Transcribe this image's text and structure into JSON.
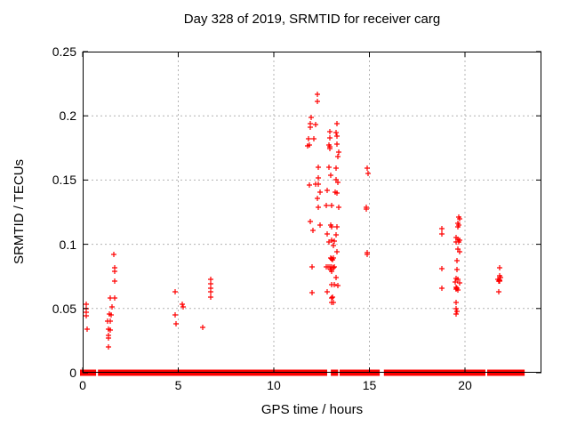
{
  "title": "Day 328 of 2019, SRMTID for receiver carg",
  "x_axis": {
    "label": "GPS time / hours",
    "tick_labels": [
      "0",
      "5",
      "10",
      "15",
      "20"
    ]
  },
  "y_axis": {
    "label": "SRMTID / TECUs",
    "tick_labels": [
      "0",
      "0.05",
      "0.1",
      "0.15",
      "0.2",
      "0.25"
    ]
  },
  "colors": {
    "marker": "#ff0000",
    "grid": "#b3b3b3",
    "border": "#000000",
    "background": "#ffffff"
  },
  "chart_data": {
    "type": "scatter",
    "title": "Day 328 of 2019, SRMTID for receiver carg",
    "xlabel": "GPS time / hours",
    "ylabel": "SRMTID / TECUs",
    "xlim": [
      0,
      24
    ],
    "ylim": [
      0,
      0.25
    ],
    "x_ticks": [
      0,
      5,
      10,
      15,
      20
    ],
    "y_ticks": [
      0,
      0.05,
      0.1,
      0.15,
      0.2,
      0.25
    ],
    "grid": true,
    "legend": "none",
    "marker": {
      "shape": "plus",
      "color": "#ff0000",
      "size": 7
    },
    "series": [
      {
        "name": "SRMTID",
        "points": [
          [
            0.2,
            0.053
          ],
          [
            0.2,
            0.05
          ],
          [
            0.2,
            0.047
          ],
          [
            0.2,
            0.044
          ],
          [
            0.25,
            0.034
          ],
          [
            1.45,
            0.058
          ],
          [
            1.55,
            0.051
          ],
          [
            1.4,
            0.046
          ],
          [
            1.5,
            0.045
          ],
          [
            1.3,
            0.04
          ],
          [
            1.42,
            0.04
          ],
          [
            1.36,
            0.034
          ],
          [
            1.42,
            0.033
          ],
          [
            1.36,
            0.029
          ],
          [
            1.36,
            0.027
          ],
          [
            1.33,
            0.02
          ],
          [
            1.63,
            0.092
          ],
          [
            1.67,
            0.082
          ],
          [
            1.67,
            0.079
          ],
          [
            1.67,
            0.071
          ],
          [
            1.67,
            0.058
          ],
          [
            4.85,
            0.063
          ],
          [
            5.21,
            0.053
          ],
          [
            5.26,
            0.051
          ],
          [
            4.82,
            0.045
          ],
          [
            4.9,
            0.038
          ],
          [
            6.26,
            0.035
          ],
          [
            6.71,
            0.073
          ],
          [
            6.71,
            0.069
          ],
          [
            6.71,
            0.066
          ],
          [
            6.71,
            0.063
          ],
          [
            6.71,
            0.059
          ],
          [
            12.29,
            0.217
          ],
          [
            12.29,
            0.211
          ],
          [
            11.95,
            0.199
          ],
          [
            11.9,
            0.194
          ],
          [
            12.19,
            0.1935
          ],
          [
            11.9,
            0.191
          ],
          [
            13.32,
            0.194
          ],
          [
            12.92,
            0.188
          ],
          [
            13.27,
            0.187
          ],
          [
            13.3,
            0.184
          ],
          [
            12.92,
            0.183
          ],
          [
            11.83,
            0.182
          ],
          [
            12.11,
            0.182
          ],
          [
            13.32,
            0.178
          ],
          [
            11.88,
            0.1775
          ],
          [
            11.77,
            0.1765
          ],
          [
            12.89,
            0.1775
          ],
          [
            12.95,
            0.176
          ],
          [
            12.92,
            0.1745
          ],
          [
            13.38,
            0.172
          ],
          [
            13.35,
            0.168
          ],
          [
            12.34,
            0.16
          ],
          [
            12.88,
            0.16
          ],
          [
            13.27,
            0.159
          ],
          [
            12.96,
            0.1535
          ],
          [
            12.34,
            0.152
          ],
          [
            11.88,
            0.146
          ],
          [
            12.19,
            0.147
          ],
          [
            12.34,
            0.1465
          ],
          [
            13.24,
            0.15
          ],
          [
            13.35,
            0.148
          ],
          [
            12.42,
            0.1405
          ],
          [
            12.81,
            0.142
          ],
          [
            13.19,
            0.1405
          ],
          [
            13.32,
            0.14
          ],
          [
            12.29,
            0.1355
          ],
          [
            12.34,
            0.129
          ],
          [
            12.76,
            0.13
          ],
          [
            13.04,
            0.13
          ],
          [
            13.38,
            0.1285
          ],
          [
            11.9,
            0.118
          ],
          [
            12.03,
            0.111
          ],
          [
            12.42,
            0.115
          ],
          [
            12.96,
            0.115
          ],
          [
            13.04,
            0.1135
          ],
          [
            13.32,
            0.1135
          ],
          [
            12.78,
            0.108
          ],
          [
            13.24,
            0.107
          ],
          [
            12.88,
            0.102
          ],
          [
            13.01,
            0.103
          ],
          [
            13.1,
            0.099
          ],
          [
            13.15,
            0.1025
          ],
          [
            13.32,
            0.0945
          ],
          [
            12.96,
            0.0895
          ],
          [
            13.01,
            0.0885
          ],
          [
            13.06,
            0.088
          ],
          [
            13.1,
            0.089
          ],
          [
            11.99,
            0.0825
          ],
          [
            12.73,
            0.0825
          ],
          [
            12.84,
            0.0825
          ],
          [
            12.92,
            0.0825
          ],
          [
            13.0,
            0.0825
          ],
          [
            13.1,
            0.082
          ],
          [
            13.16,
            0.0825
          ],
          [
            12.96,
            0.08
          ],
          [
            13.01,
            0.079
          ],
          [
            13.24,
            0.074
          ],
          [
            13.04,
            0.0685
          ],
          [
            13.16,
            0.0685
          ],
          [
            13.35,
            0.068
          ],
          [
            11.99,
            0.062
          ],
          [
            12.81,
            0.063
          ],
          [
            13.01,
            0.058
          ],
          [
            13.09,
            0.059
          ],
          [
            13.04,
            0.055
          ],
          [
            13.13,
            0.0545
          ],
          [
            14.87,
            0.159
          ],
          [
            14.93,
            0.155
          ],
          [
            14.85,
            0.1275
          ],
          [
            14.85,
            0.129
          ],
          [
            14.9,
            0.0935
          ],
          [
            14.87,
            0.092
          ],
          [
            18.78,
            0.112
          ],
          [
            18.8,
            0.108
          ],
          [
            18.78,
            0.081
          ],
          [
            18.78,
            0.066
          ],
          [
            19.66,
            0.121
          ],
          [
            19.7,
            0.12
          ],
          [
            19.63,
            0.1165
          ],
          [
            19.66,
            0.115
          ],
          [
            19.63,
            0.1135
          ],
          [
            19.55,
            0.105
          ],
          [
            19.63,
            0.104
          ],
          [
            19.7,
            0.103
          ],
          [
            19.55,
            0.102
          ],
          [
            19.66,
            0.1015
          ],
          [
            19.63,
            0.096
          ],
          [
            19.7,
            0.0945
          ],
          [
            19.6,
            0.0875
          ],
          [
            19.6,
            0.0805
          ],
          [
            19.55,
            0.0735
          ],
          [
            19.63,
            0.0725
          ],
          [
            19.48,
            0.0705
          ],
          [
            19.7,
            0.07
          ],
          [
            19.53,
            0.0665
          ],
          [
            19.58,
            0.066
          ],
          [
            19.55,
            0.065
          ],
          [
            19.63,
            0.0645
          ],
          [
            19.55,
            0.055
          ],
          [
            19.53,
            0.05
          ],
          [
            19.58,
            0.048
          ],
          [
            19.55,
            0.046
          ],
          [
            21.8,
            0.082
          ],
          [
            21.8,
            0.0755
          ],
          [
            21.85,
            0.074
          ],
          [
            21.7,
            0.0725
          ],
          [
            21.8,
            0.072
          ],
          [
            21.75,
            0.0715
          ],
          [
            21.81,
            0.071
          ],
          [
            21.75,
            0.063
          ]
        ]
      }
    ],
    "zero_line_segments": [
      [
        0.0,
        0.1
      ],
      [
        0.14,
        0.22
      ],
      [
        0.26,
        0.34
      ],
      [
        0.38,
        0.56
      ],
      [
        0.94,
        2.26
      ],
      [
        2.5,
        2.6
      ],
      [
        2.64,
        3.1
      ],
      [
        3.27,
        4.34
      ],
      [
        4.42,
        4.97
      ],
      [
        5.13,
        6.12
      ],
      [
        6.26,
        6.99
      ],
      [
        7.15,
        8.3
      ],
      [
        8.46,
        9.07
      ],
      [
        9.24,
        9.7
      ],
      [
        9.86,
        10.32
      ],
      [
        10.48,
        10.94
      ],
      [
        11.05,
        12.34
      ],
      [
        12.45,
        12.65
      ],
      [
        13.12,
        13.22
      ],
      [
        13.58,
        13.69
      ],
      [
        13.81,
        14.51
      ],
      [
        14.62,
        15.01
      ],
      [
        15.13,
        15.4
      ],
      [
        15.9,
        16.3
      ],
      [
        16.4,
        16.6
      ],
      [
        16.72,
        16.88
      ],
      [
        16.95,
        17.5
      ],
      [
        17.57,
        18.27
      ],
      [
        18.33,
        18.6
      ],
      [
        18.71,
        19.2
      ],
      [
        19.3,
        19.52
      ],
      [
        19.66,
        20.6
      ],
      [
        20.77,
        20.93
      ],
      [
        21.3,
        21.9
      ],
      [
        22.02,
        22.4
      ],
      [
        22.5,
        22.98
      ]
    ]
  }
}
